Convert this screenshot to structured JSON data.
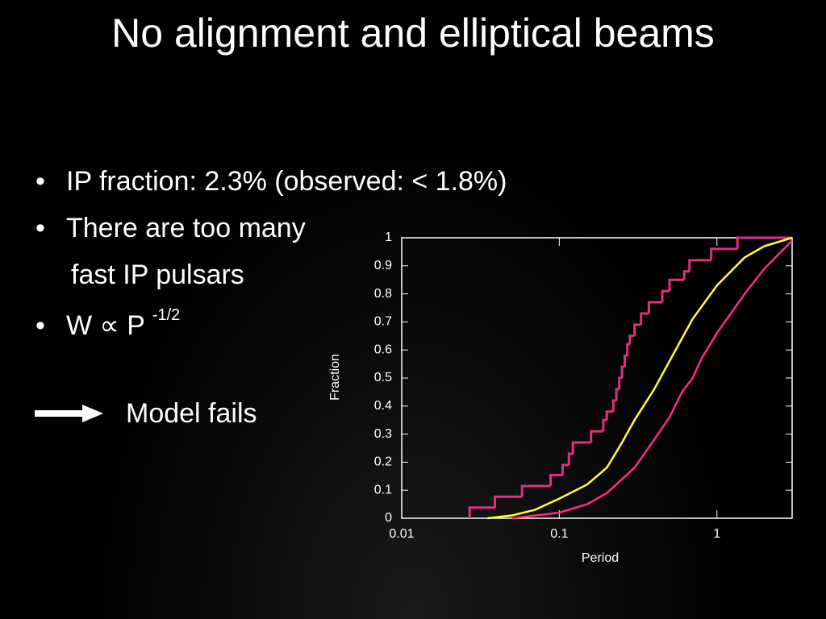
{
  "slide": {
    "title": "No alignment and elliptical beams",
    "bullets": [
      "IP fraction: 2.3% (observed: < 1.8%)",
      "There are too many",
      "fast IP pulsars",
      "W ∝ P",
      "-1/2"
    ],
    "arrow_text": "Model fails"
  },
  "chart_data": {
    "type": "line",
    "x_label": "Period",
    "y_label": "Fraction",
    "x_log": true,
    "xlim": [
      0.01,
      3
    ],
    "xticks": [
      0.01,
      0.1,
      1
    ],
    "ylim": [
      0,
      1
    ],
    "yticks": [
      0,
      0.1,
      0.2,
      0.3,
      0.4,
      0.5,
      0.6,
      0.7,
      0.8,
      0.9,
      1
    ],
    "series": [
      {
        "color": "#e0307f",
        "drawstyle": "steps-post",
        "x": [
          0.027,
          0.039,
          0.058,
          0.088,
          0.105,
          0.115,
          0.122,
          0.159,
          0.19,
          0.2,
          0.22,
          0.23,
          0.24,
          0.25,
          0.26,
          0.27,
          0.28,
          0.3,
          0.33,
          0.37,
          0.45,
          0.5,
          0.62,
          0.67,
          0.92,
          1.35
        ],
        "values": [
          0.038,
          0.077,
          0.115,
          0.154,
          0.19,
          0.23,
          0.27,
          0.31,
          0.35,
          0.38,
          0.42,
          0.46,
          0.5,
          0.54,
          0.58,
          0.62,
          0.65,
          0.69,
          0.73,
          0.77,
          0.81,
          0.85,
          0.88,
          0.92,
          0.96,
          1.0
        ]
      },
      {
        "color": "#ffff33",
        "x": [
          0.035,
          0.05,
          0.07,
          0.1,
          0.15,
          0.2,
          0.25,
          0.3,
          0.4,
          0.5,
          0.7,
          1.0,
          1.5,
          2,
          3
        ],
        "values": [
          0,
          0.01,
          0.03,
          0.07,
          0.12,
          0.18,
          0.27,
          0.35,
          0.46,
          0.56,
          0.71,
          0.83,
          0.93,
          0.97,
          1.0
        ]
      },
      {
        "color": "#ff2a8a",
        "x": [
          0.05,
          0.1,
          0.15,
          0.2,
          0.3,
          0.4,
          0.5,
          0.6,
          0.7,
          0.8,
          1.0,
          1.5,
          2,
          3
        ],
        "values": [
          0,
          0.02,
          0.05,
          0.09,
          0.18,
          0.28,
          0.36,
          0.45,
          0.5,
          0.57,
          0.66,
          0.8,
          0.89,
          0.99
        ]
      }
    ]
  }
}
